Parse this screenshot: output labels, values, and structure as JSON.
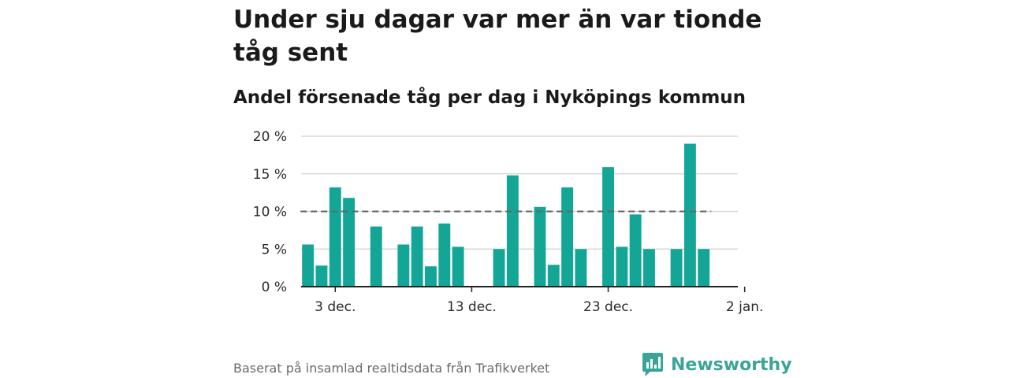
{
  "title": "Under sju dagar var mer än var tionde tåg sent",
  "subtitle": "Andel försenade tåg per dag i Nyköpings kommun",
  "source": "Baserat på insamlad realtidsdata från Trafikverket",
  "brand": {
    "name": "Newsworthy",
    "icon": "newsworthy-logo-icon",
    "color": "#3aa597"
  },
  "colors": {
    "bar": "#13a596",
    "grid": "#d9d9d9",
    "reference_line": "#666666",
    "axis": "#222222"
  },
  "chart_data": {
    "type": "bar",
    "title": "Under sju dagar var mer än var tionde tåg sent",
    "subtitle": "Andel försenade tåg per dag i Nyköpings kommun",
    "xlabel": "",
    "ylabel": "",
    "x_start_date": "2023-12-01",
    "xlim_days": [
      -0.5,
      31.5
    ],
    "ylim": [
      0,
      20
    ],
    "y_ticks": [
      {
        "value": 0,
        "label": "0 %"
      },
      {
        "value": 5,
        "label": "5 %"
      },
      {
        "value": 10,
        "label": "10 %"
      },
      {
        "value": 15,
        "label": "15 %"
      },
      {
        "value": 20,
        "label": "20 %"
      }
    ],
    "x_ticks": [
      {
        "day": 2,
        "label": "3 dec."
      },
      {
        "day": 12,
        "label": "13 dec."
      },
      {
        "day": 22,
        "label": "23 dec."
      },
      {
        "day": 32,
        "label": "2 jan."
      }
    ],
    "reference_line": {
      "value": 10,
      "style": "dashed"
    },
    "grid": true,
    "legend": "none",
    "values": [
      5.6,
      2.8,
      13.2,
      11.8,
      null,
      8.0,
      null,
      5.6,
      8.0,
      2.7,
      8.4,
      5.3,
      null,
      null,
      5.0,
      14.8,
      null,
      10.6,
      2.9,
      13.2,
      5.0,
      null,
      15.9,
      5.3,
      9.6,
      5.0,
      null,
      5.0,
      19.0,
      5.0
    ]
  }
}
